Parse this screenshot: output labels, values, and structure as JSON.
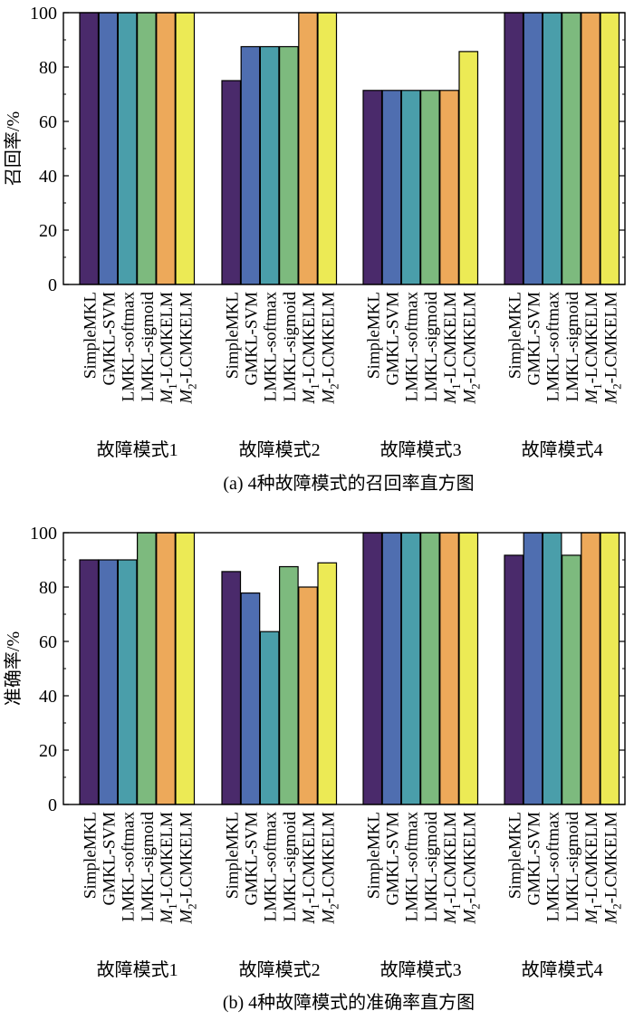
{
  "chart_data": [
    {
      "type": "bar",
      "title": "(a) 4种故障模式的召回率直方图",
      "ylabel": "召回率/%",
      "xlabel": "",
      "ylim": [
        0,
        100
      ],
      "yticks": [
        "0",
        "20",
        "40",
        "60",
        "80",
        "100"
      ],
      "groups": [
        "故障模式1",
        "故障模式2",
        "故障模式3",
        "故障模式4"
      ],
      "series": [
        {
          "name": "SimpleMKL",
          "values": [
            100,
            75,
            71.4,
            100
          ]
        },
        {
          "name": "GMKL-SVM",
          "values": [
            100,
            87.5,
            71.4,
            100
          ]
        },
        {
          "name": "LMKL-softmax",
          "values": [
            100,
            87.5,
            71.4,
            100
          ]
        },
        {
          "name": "LMKL-sigmoid",
          "values": [
            100,
            87.5,
            71.4,
            100
          ]
        },
        {
          "name": "M1-LCMKELM",
          "values": [
            100,
            100,
            71.4,
            100
          ]
        },
        {
          "name": "M2-LCMKELM",
          "values": [
            100,
            100,
            85.7,
            100
          ]
        }
      ]
    },
    {
      "type": "bar",
      "title": "(b) 4种故障模式的准确率直方图",
      "ylabel": "准确率/%",
      "xlabel": "",
      "ylim": [
        0,
        100
      ],
      "yticks": [
        "0",
        "20",
        "40",
        "60",
        "80",
        "100"
      ],
      "groups": [
        "故障模式1",
        "故障模式2",
        "故障模式3",
        "故障模式4"
      ],
      "series": [
        {
          "name": "SimpleMKL",
          "values": [
            90,
            85.7,
            100,
            91.7
          ]
        },
        {
          "name": "GMKL-SVM",
          "values": [
            90,
            77.8,
            100,
            100
          ]
        },
        {
          "name": "LMKL-softmax",
          "values": [
            90,
            63.6,
            100,
            100
          ]
        },
        {
          "name": "LMKL-sigmoid",
          "values": [
            100,
            87.5,
            100,
            91.7
          ]
        },
        {
          "name": "M1-LCMKELM",
          "values": [
            100,
            80,
            100,
            100
          ]
        },
        {
          "name": "M2-LCMKELM",
          "values": [
            100,
            88.9,
            100,
            100
          ]
        }
      ]
    }
  ],
  "series_colors": [
    "#4a2a6b",
    "#4f6eb0",
    "#4a9eaa",
    "#7dba7e",
    "#eda95a",
    "#ecea55"
  ],
  "label_parts": {
    "M1-LCMKELM": {
      "main": "M",
      "sub": "1",
      "rest": "-LCMKELM"
    },
    "M2-LCMKELM": {
      "main": "M",
      "sub": "2",
      "rest": "-LCMKELM"
    }
  }
}
